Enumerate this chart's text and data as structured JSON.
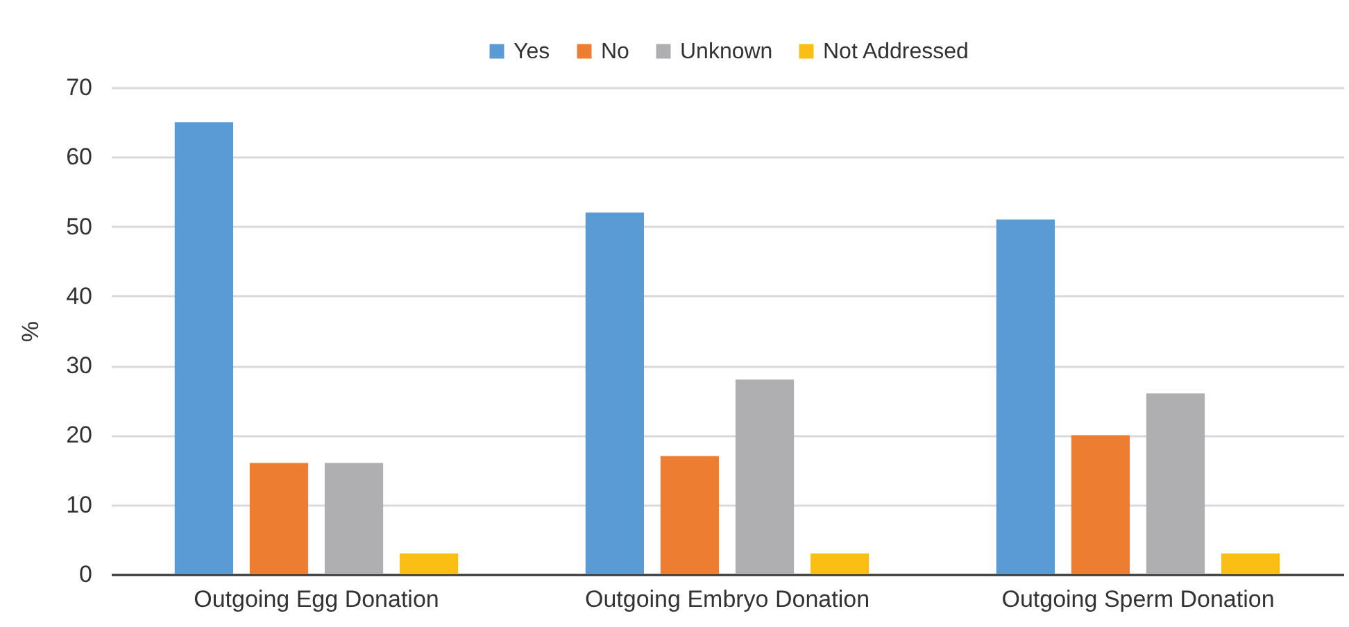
{
  "chart_data": {
    "type": "bar",
    "ylabel": "%",
    "categories": [
      "Outgoing Egg Donation",
      "Outgoing Embryo Donation",
      "Outgoing Sperm Donation"
    ],
    "series": [
      {
        "name": "Yes",
        "color": "#5b9bd5",
        "values": [
          65,
          52,
          51
        ]
      },
      {
        "name": "No",
        "color": "#ed7d31",
        "values": [
          16,
          17,
          20
        ]
      },
      {
        "name": "Unknown",
        "color": "#afafb1",
        "values": [
          16,
          28,
          26
        ]
      },
      {
        "name": "Not Addressed",
        "color": "#fbbe14",
        "values": [
          3,
          3,
          3
        ]
      }
    ],
    "ylim": [
      0,
      70
    ],
    "yticks": [
      0,
      10,
      20,
      30,
      40,
      50,
      60,
      70
    ],
    "grid": "y",
    "legend": "top"
  }
}
